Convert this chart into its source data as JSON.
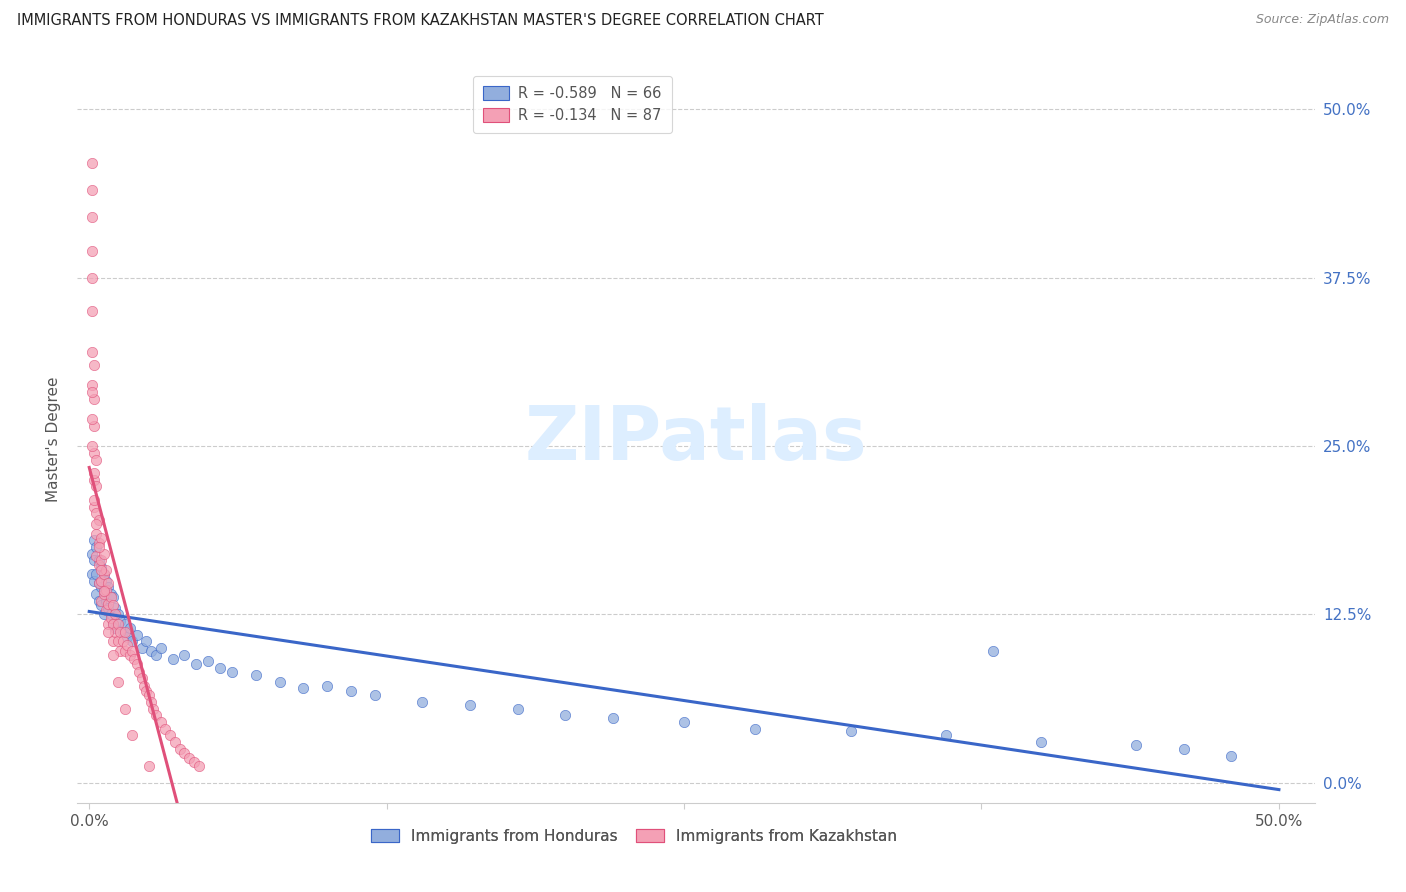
{
  "title": "IMMIGRANTS FROM HONDURAS VS IMMIGRANTS FROM KAZAKHSTAN MASTER'S DEGREE CORRELATION CHART",
  "source": "Source: ZipAtlas.com",
  "ylabel": "Master's Degree",
  "color_honduras": "#92AEDD",
  "color_kazakhstan": "#F4A0B5",
  "trendline_color_honduras": "#3A66C8",
  "trendline_color_kazakhstan": "#E0507A",
  "right_tick_color": "#4472C4",
  "grid_color": "#cccccc",
  "title_color": "#222222",
  "source_color": "#888888",
  "watermark_color": "#ddeeff",
  "legend_r_honduras": "-0.589",
  "legend_n_honduras": "66",
  "legend_r_kazakhstan": "-0.134",
  "legend_n_kazakhstan": "87",
  "xlim": [
    0.0,
    0.5
  ],
  "ylim": [
    0.0,
    0.5
  ],
  "yticks": [
    0.0,
    0.125,
    0.25,
    0.375,
    0.5
  ],
  "ytick_labels_right": [
    "0.0%",
    "12.5%",
    "25.0%",
    "37.5%",
    "50.0%"
  ],
  "xtick_vals": [
    0.0,
    0.125,
    0.25,
    0.375,
    0.5
  ],
  "xtick_labels": [
    "0.0%",
    "",
    "",
    "",
    "50.0%"
  ],
  "honduras_x": [
    0.001,
    0.001,
    0.002,
    0.002,
    0.002,
    0.003,
    0.003,
    0.003,
    0.004,
    0.004,
    0.004,
    0.005,
    0.005,
    0.005,
    0.006,
    0.006,
    0.006,
    0.007,
    0.007,
    0.008,
    0.008,
    0.009,
    0.009,
    0.01,
    0.01,
    0.011,
    0.011,
    0.012,
    0.013,
    0.014,
    0.015,
    0.016,
    0.017,
    0.018,
    0.02,
    0.022,
    0.024,
    0.026,
    0.028,
    0.03,
    0.035,
    0.04,
    0.045,
    0.05,
    0.055,
    0.06,
    0.07,
    0.08,
    0.09,
    0.1,
    0.11,
    0.12,
    0.14,
    0.16,
    0.18,
    0.2,
    0.22,
    0.25,
    0.28,
    0.32,
    0.36,
    0.4,
    0.44,
    0.46,
    0.48,
    0.38
  ],
  "honduras_y": [
    0.17,
    0.155,
    0.18,
    0.165,
    0.15,
    0.175,
    0.155,
    0.14,
    0.165,
    0.148,
    0.135,
    0.16,
    0.145,
    0.132,
    0.155,
    0.142,
    0.125,
    0.15,
    0.135,
    0.145,
    0.13,
    0.14,
    0.125,
    0.138,
    0.118,
    0.13,
    0.115,
    0.125,
    0.12,
    0.112,
    0.118,
    0.108,
    0.115,
    0.105,
    0.11,
    0.1,
    0.105,
    0.098,
    0.095,
    0.1,
    0.092,
    0.095,
    0.088,
    0.09,
    0.085,
    0.082,
    0.08,
    0.075,
    0.07,
    0.072,
    0.068,
    0.065,
    0.06,
    0.058,
    0.055,
    0.05,
    0.048,
    0.045,
    0.04,
    0.038,
    0.035,
    0.03,
    0.028,
    0.025,
    0.02,
    0.098
  ],
  "kazakhstan_x": [
    0.001,
    0.001,
    0.001,
    0.001,
    0.001,
    0.001,
    0.001,
    0.001,
    0.002,
    0.002,
    0.002,
    0.002,
    0.002,
    0.002,
    0.003,
    0.003,
    0.003,
    0.003,
    0.003,
    0.004,
    0.004,
    0.004,
    0.004,
    0.005,
    0.005,
    0.005,
    0.005,
    0.006,
    0.006,
    0.006,
    0.007,
    0.007,
    0.007,
    0.008,
    0.008,
    0.008,
    0.009,
    0.009,
    0.01,
    0.01,
    0.01,
    0.011,
    0.011,
    0.012,
    0.012,
    0.013,
    0.013,
    0.014,
    0.015,
    0.015,
    0.016,
    0.017,
    0.018,
    0.019,
    0.02,
    0.021,
    0.022,
    0.023,
    0.024,
    0.025,
    0.026,
    0.027,
    0.028,
    0.03,
    0.032,
    0.034,
    0.036,
    0.038,
    0.04,
    0.042,
    0.044,
    0.046,
    0.001,
    0.001,
    0.001,
    0.002,
    0.002,
    0.003,
    0.004,
    0.005,
    0.006,
    0.008,
    0.01,
    0.012,
    0.015,
    0.018,
    0.025
  ],
  "kazakhstan_y": [
    0.46,
    0.44,
    0.42,
    0.395,
    0.375,
    0.35,
    0.32,
    0.295,
    0.31,
    0.285,
    0.265,
    0.245,
    0.225,
    0.205,
    0.24,
    0.22,
    0.2,
    0.185,
    0.168,
    0.195,
    0.178,
    0.162,
    0.148,
    0.182,
    0.165,
    0.15,
    0.135,
    0.17,
    0.155,
    0.14,
    0.158,
    0.143,
    0.128,
    0.148,
    0.133,
    0.118,
    0.138,
    0.122,
    0.132,
    0.118,
    0.105,
    0.125,
    0.112,
    0.118,
    0.105,
    0.112,
    0.098,
    0.105,
    0.112,
    0.098,
    0.102,
    0.095,
    0.098,
    0.092,
    0.088,
    0.082,
    0.078,
    0.072,
    0.068,
    0.065,
    0.06,
    0.055,
    0.05,
    0.045,
    0.04,
    0.035,
    0.03,
    0.025,
    0.022,
    0.018,
    0.015,
    0.012,
    0.29,
    0.27,
    0.25,
    0.23,
    0.21,
    0.192,
    0.175,
    0.158,
    0.142,
    0.112,
    0.095,
    0.075,
    0.055,
    0.035,
    0.012
  ]
}
